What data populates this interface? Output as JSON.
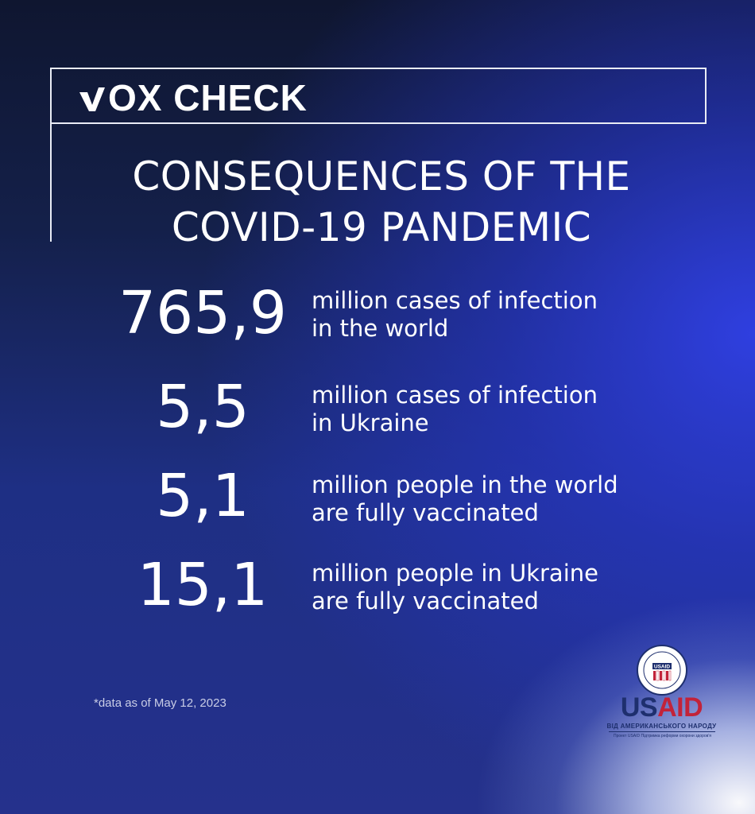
{
  "brand": {
    "logo_text": "OX CHECK",
    "logo_mark_icon": "check-v-icon"
  },
  "title": {
    "line1": "CONSEQUENCES OF THE",
    "line2": "COVID-19 PANDEMIC"
  },
  "stats": [
    {
      "value": "765,9",
      "desc_line1": "million cases of infection",
      "desc_line2": "in the world"
    },
    {
      "value": "5,5",
      "desc_line1": "million cases of infection",
      "desc_line2": "in Ukraine"
    },
    {
      "value": "5,1",
      "desc_line1": "million people in the world",
      "desc_line2": "are fully vaccinated"
    },
    {
      "value": "15,1",
      "desc_line1": "million people in Ukraine",
      "desc_line2": "are fully vaccinated"
    }
  ],
  "footnote": "*data as of May 12, 2023",
  "usaid": {
    "seal_text": "USAID",
    "word_us": "US",
    "word_aid": "AID",
    "tagline": "ВІД АМЕРИКАНСЬКОГО НАРОДУ",
    "project": "Проект USAID Підтримка реформи охорони здоров'я"
  },
  "colors": {
    "background": "#1b1f4a",
    "accent_blue": "#2f3fe0",
    "usaid_red": "#c2233a",
    "usaid_navy": "#1e2f6e"
  }
}
